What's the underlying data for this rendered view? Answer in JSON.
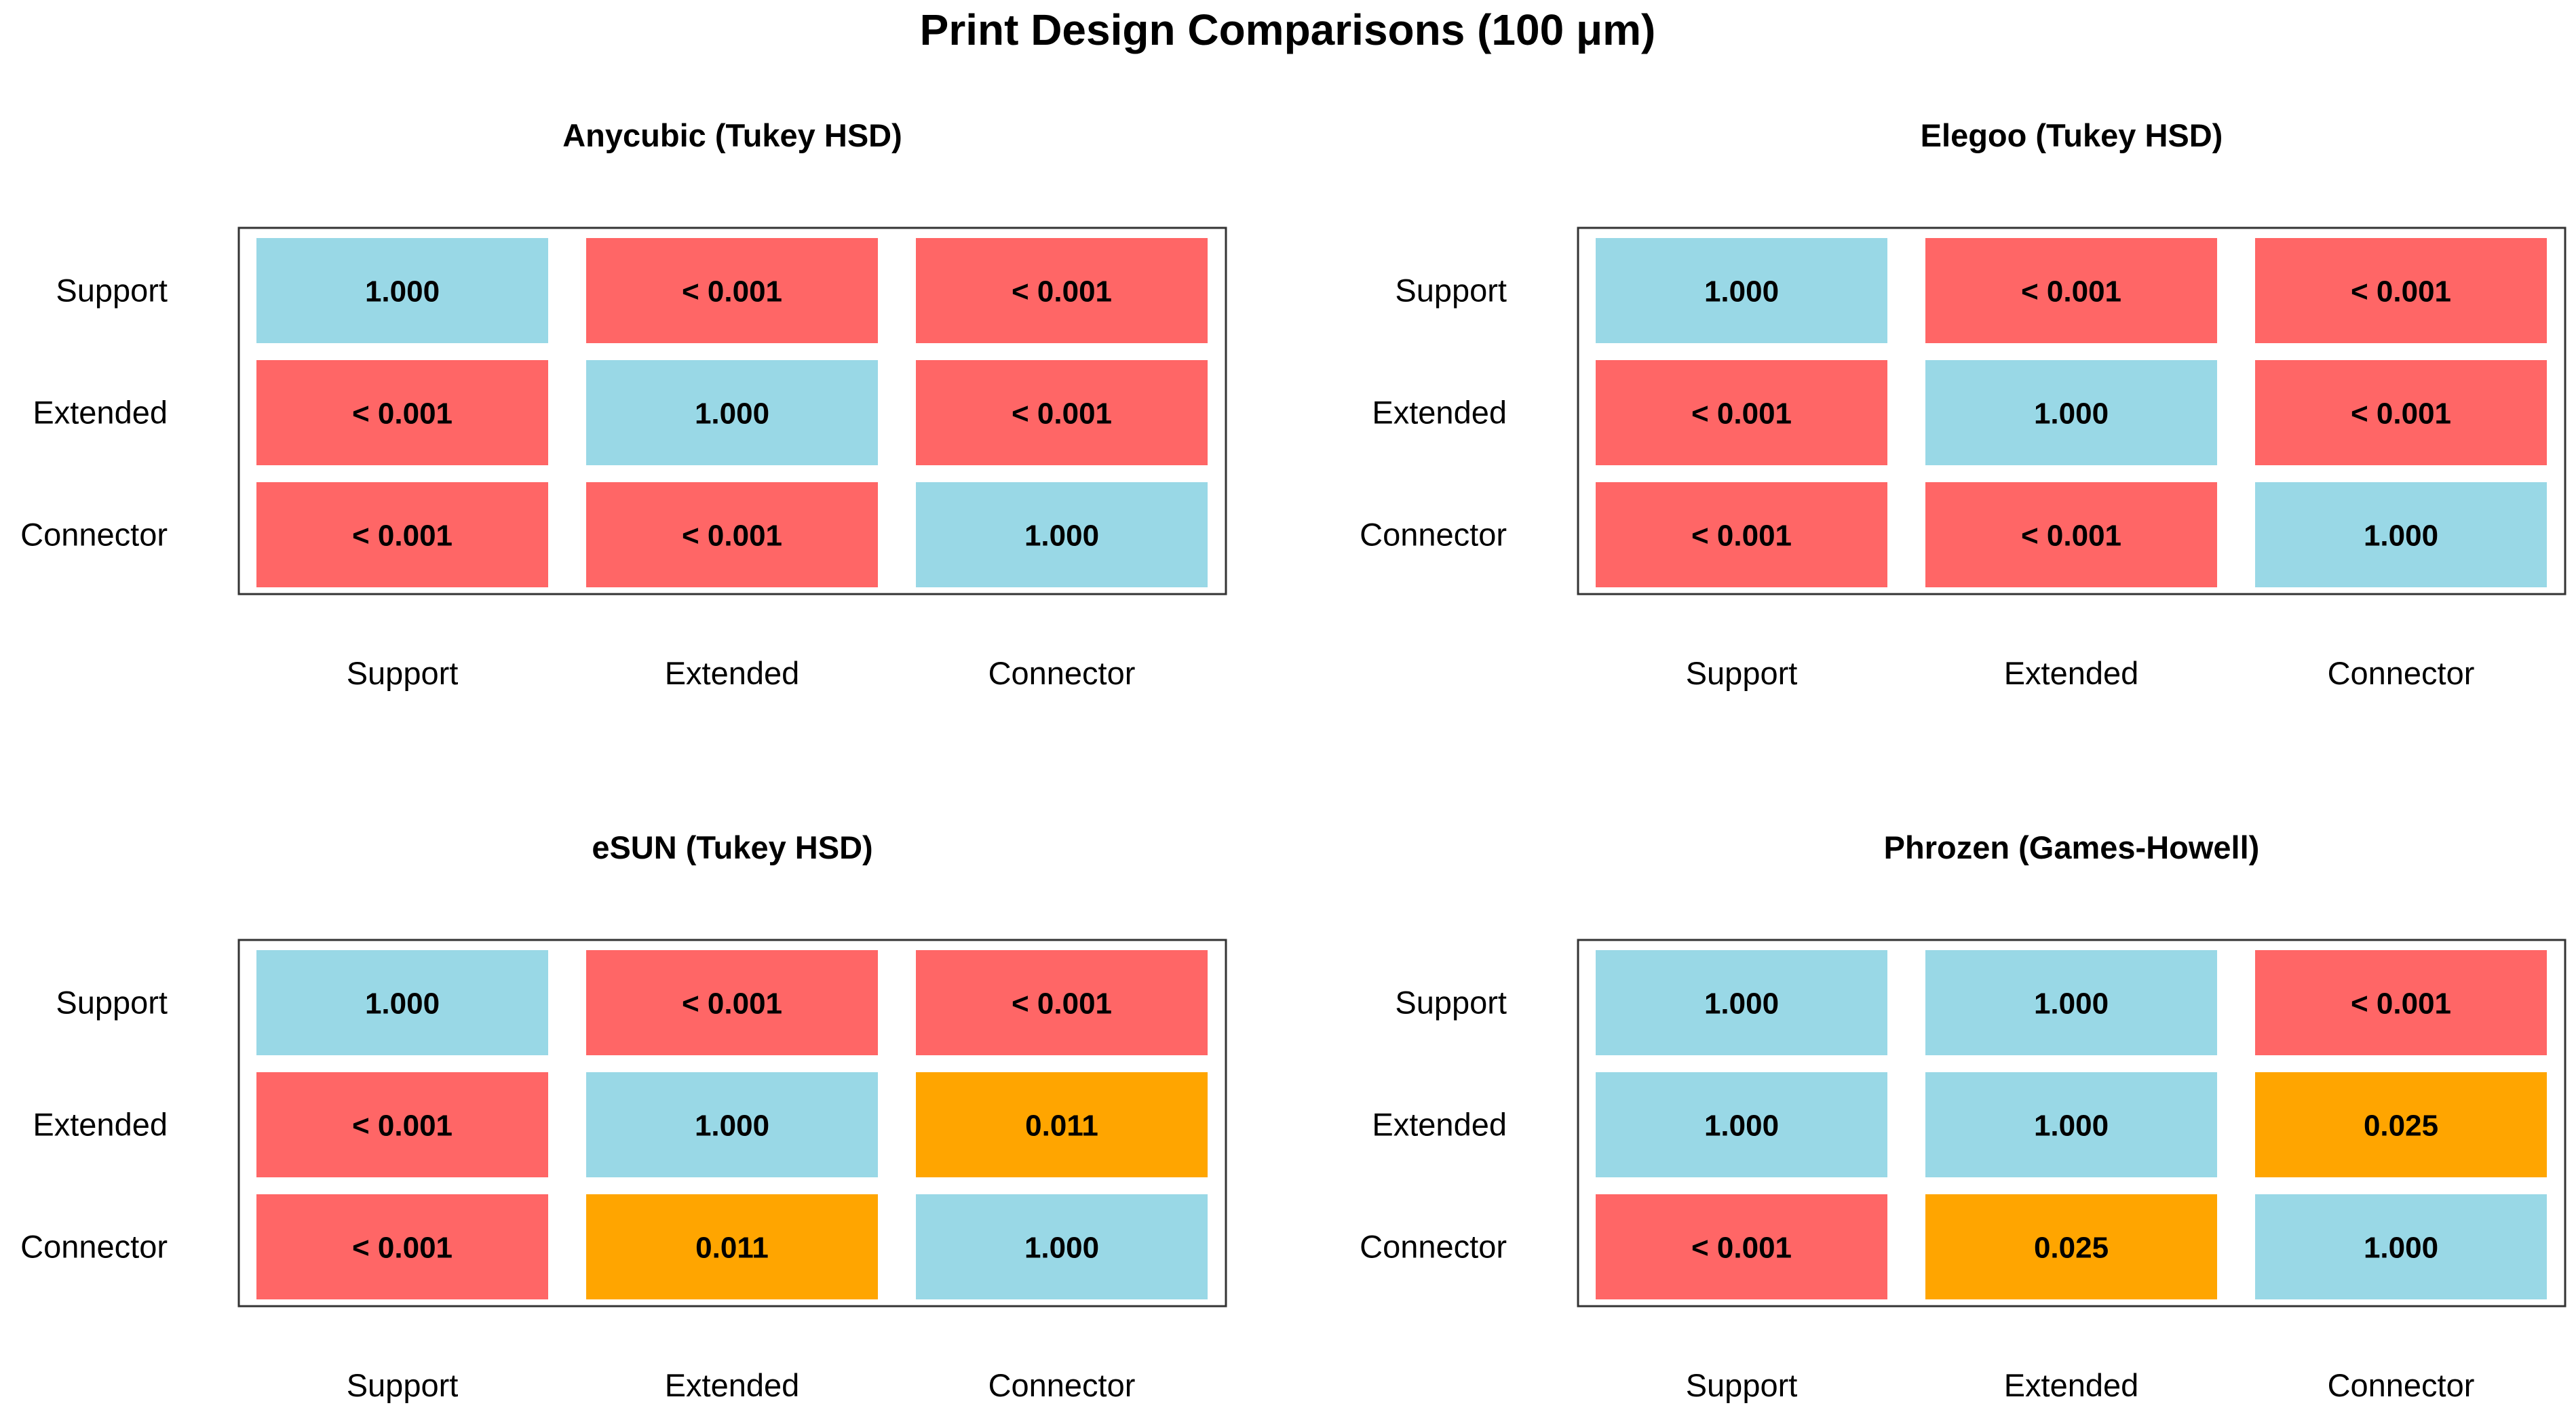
{
  "title": "Print Design Comparisons (100 μm)",
  "colors": {
    "high": "#99d8e6",
    "significant": "#ff6666",
    "moderate": "#ffa500",
    "panel_border": "#333333",
    "background": "#ffffff"
  },
  "chart_data": [
    {
      "type": "heatmap",
      "title": "Anycubic (Tukey HSD)",
      "rows": [
        "Support",
        "Extended",
        "Connector"
      ],
      "columns": [
        "Support",
        "Extended",
        "Connector"
      ],
      "values": [
        [
          "1.000",
          "< 0.001",
          "< 0.001"
        ],
        [
          "< 0.001",
          "1.000",
          "< 0.001"
        ],
        [
          "< 0.001",
          "< 0.001",
          "1.000"
        ]
      ]
    },
    {
      "type": "heatmap",
      "title": "Elegoo (Tukey HSD)",
      "rows": [
        "Support",
        "Extended",
        "Connector"
      ],
      "columns": [
        "Support",
        "Extended",
        "Connector"
      ],
      "values": [
        [
          "1.000",
          "< 0.001",
          "< 0.001"
        ],
        [
          "< 0.001",
          "1.000",
          "< 0.001"
        ],
        [
          "< 0.001",
          "< 0.001",
          "1.000"
        ]
      ]
    },
    {
      "type": "heatmap",
      "title": "eSUN (Tukey HSD)",
      "rows": [
        "Support",
        "Extended",
        "Connector"
      ],
      "columns": [
        "Support",
        "Extended",
        "Connector"
      ],
      "values": [
        [
          "1.000",
          "< 0.001",
          "< 0.001"
        ],
        [
          "< 0.001",
          "1.000",
          "0.011"
        ],
        [
          "< 0.001",
          "0.011",
          "1.000"
        ]
      ]
    },
    {
      "type": "heatmap",
      "title": "Phrozen (Games-Howell)",
      "rows": [
        "Support",
        "Extended",
        "Connector"
      ],
      "columns": [
        "Support",
        "Extended",
        "Connector"
      ],
      "values": [
        [
          "1.000",
          "1.000",
          "< 0.001"
        ],
        [
          "1.000",
          "1.000",
          "0.025"
        ],
        [
          "< 0.001",
          "0.025",
          "1.000"
        ]
      ]
    }
  ]
}
